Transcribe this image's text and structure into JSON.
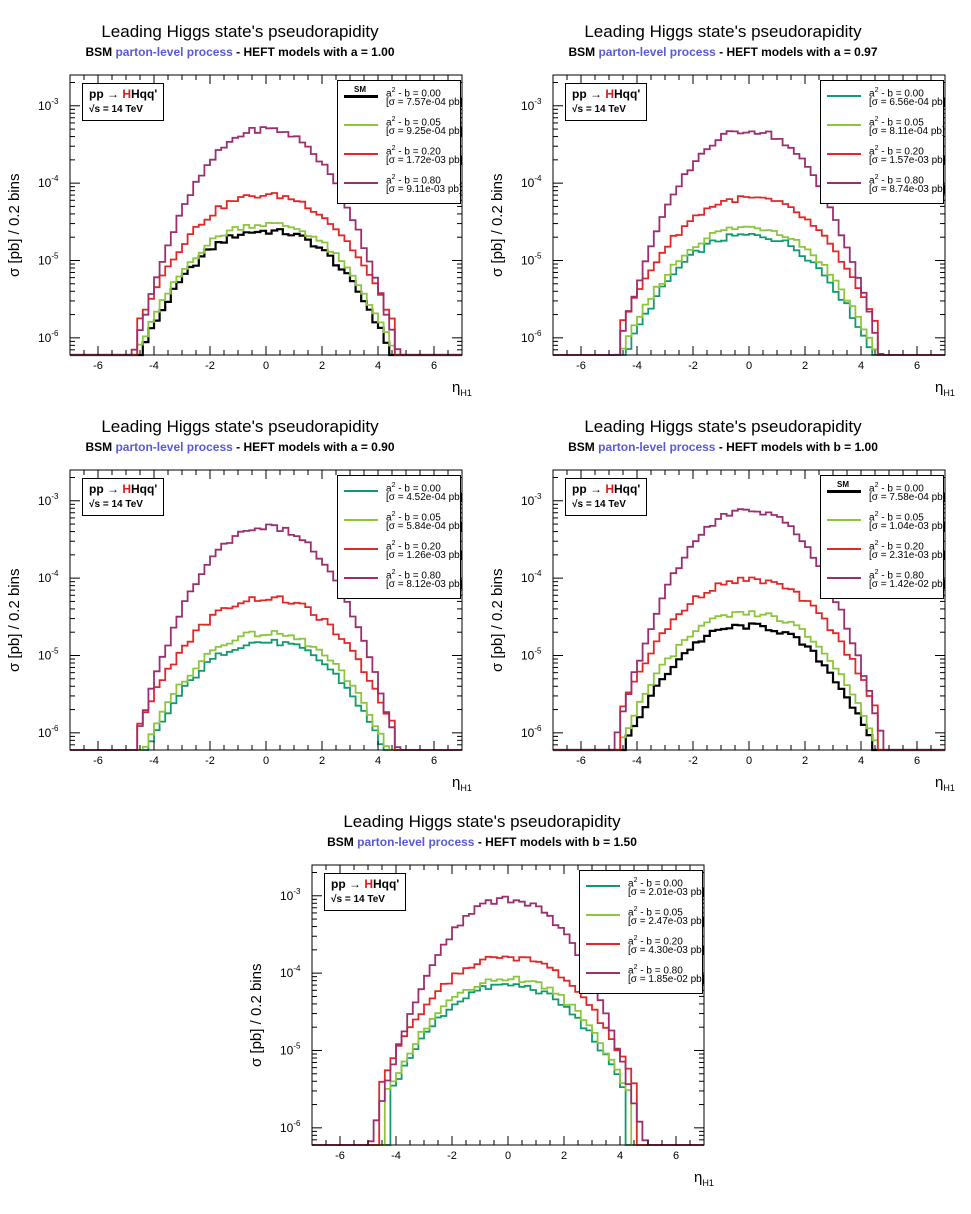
{
  "common": {
    "title": "Leading Higgs state's pseudorapidity",
    "subtitle_prefix": "BSM",
    "subtitle_highlight": "parton-level process",
    "subtitle_mid": "- HEFT models with",
    "ylabel": "σ [pb] / 0.2 bins",
    "xlabel": "η",
    "xlabel_sub": "H",
    "xlabel_subsub": "1",
    "process": "pp",
    "process_arrow": "→",
    "process_H": "H",
    "process_rest": "Hqq'",
    "energy": "√s = 14 TeV",
    "sm_tag": "SM",
    "colors": {
      "sm": "#000000",
      "s000": "#119a6e",
      "s005": "#8cc63e",
      "s020": "#e02828",
      "s080": "#9b2f6e",
      "hl": "#5a5ad6",
      "higgs": "#e01a1a"
    }
  },
  "chart_data": [
    {
      "type": "line",
      "id": "p1",
      "title": "Leading Higgs state's pseudorapidity",
      "subtitle_param": "a = 1.00",
      "xlabel": "η_H1",
      "ylabel": "σ [pb] / 0.2 bins",
      "x_range": [
        -7,
        7
      ],
      "ylim": [
        6e-07,
        0.0025
      ],
      "y_scale": "log",
      "bin_width": 0.2,
      "x_ticks": [
        -6,
        -4,
        -2,
        0,
        2,
        4,
        6
      ],
      "y_ticks": [
        "10-6",
        "10-5",
        "10-4",
        "10-3"
      ],
      "series": [
        {
          "name": "a² - b = 0.00",
          "sm": true,
          "color_key": "sm",
          "sigma_label": "[σ = 7.57e-04 pb]",
          "label_a": "a",
          "label_b": " - b = 0.00",
          "peak": 2.6e-05,
          "dip": 0.08,
          "width": 2.3,
          "tail": 4.4
        },
        {
          "name": "a² - b = 0.05",
          "sm": false,
          "color_key": "s005",
          "sigma_label": "[σ = 9.25e-04 pb]",
          "label_a": "a",
          "label_b": " - b = 0.05",
          "peak": 3.2e-05,
          "dip": 0.08,
          "width": 2.3,
          "tail": 4.5
        },
        {
          "name": "a² - b = 0.20",
          "sm": false,
          "color_key": "s020",
          "sigma_label": "[σ = 1.72e-03 pb]",
          "label_a": "a",
          "label_b": " - b = 0.20",
          "peak": 7.2e-05,
          "dip": 0.03,
          "width": 2.3,
          "tail": 4.6
        },
        {
          "name": "a² - b = 0.80",
          "sm": false,
          "color_key": "s080",
          "sigma_label": "[σ = 9.11e-03 pb]",
          "label_a": "a",
          "label_b": " - b = 0.80",
          "peak": 0.0005,
          "dip": 0.0,
          "width": 1.85,
          "tail": 4.9
        }
      ]
    },
    {
      "type": "line",
      "id": "p2",
      "title": "Leading Higgs state's pseudorapidity",
      "subtitle_param": "a = 0.97",
      "xlabel": "η_H1",
      "ylabel": "σ [pb] / 0.2 bins",
      "x_range": [
        -7,
        7
      ],
      "ylim": [
        6e-07,
        0.0025
      ],
      "y_scale": "log",
      "bin_width": 0.2,
      "x_ticks": [
        -6,
        -4,
        -2,
        0,
        2,
        4,
        6
      ],
      "y_ticks": [
        "10-6",
        "10-5",
        "10-4",
        "10-3"
      ],
      "series": [
        {
          "name": "a² - b = 0.00",
          "sm": false,
          "color_key": "s000",
          "sigma_label": "[σ = 6.56e-04 pb]",
          "label_a": "a",
          "label_b": " - b = 0.00",
          "peak": 2.2e-05,
          "dip": 0.04,
          "width": 2.3,
          "tail": 4.4
        },
        {
          "name": "a² - b = 0.05",
          "sm": false,
          "color_key": "s005",
          "sigma_label": "[σ = 8.11e-04 pb]",
          "label_a": "a",
          "label_b": " - b = 0.05",
          "peak": 2.8e-05,
          "dip": 0.04,
          "width": 2.3,
          "tail": 4.5
        },
        {
          "name": "a² - b = 0.20",
          "sm": false,
          "color_key": "s020",
          "sigma_label": "[σ = 1.57e-03 pb]",
          "label_a": "a",
          "label_b": " - b = 0.20",
          "peak": 6.5e-05,
          "dip": 0.02,
          "width": 2.3,
          "tail": 4.6
        },
        {
          "name": "a² - b = 0.80",
          "sm": false,
          "color_key": "s080",
          "sigma_label": "[σ = 8.74e-03 pb]",
          "label_a": "a",
          "label_b": " - b = 0.80",
          "peak": 0.00048,
          "dip": 0.0,
          "width": 1.85,
          "tail": 4.9
        }
      ]
    },
    {
      "type": "line",
      "id": "p3",
      "title": "Leading Higgs state's pseudorapidity",
      "subtitle_param": "a = 0.90",
      "xlabel": "η_H1",
      "ylabel": "σ [pb] / 0.2 bins",
      "x_range": [
        -7,
        7
      ],
      "ylim": [
        6e-07,
        0.0025
      ],
      "y_scale": "log",
      "bin_width": 0.2,
      "x_ticks": [
        -6,
        -4,
        -2,
        0,
        2,
        4,
        6
      ],
      "y_ticks": [
        "10-6",
        "10-5",
        "10-4",
        "10-3"
      ],
      "series": [
        {
          "name": "a² - b = 0.00",
          "sm": false,
          "color_key": "s000",
          "sigma_label": "[σ = 4.52e-04 pb]",
          "label_a": "a",
          "label_b": " - b = 0.00",
          "peak": 1.55e-05,
          "dip": 0.04,
          "width": 2.3,
          "tail": 4.4
        },
        {
          "name": "a² - b = 0.05",
          "sm": false,
          "color_key": "s005",
          "sigma_label": "[σ = 5.84e-04 pb]",
          "label_a": "a",
          "label_b": " - b = 0.05",
          "peak": 2e-05,
          "dip": 0.04,
          "width": 2.3,
          "tail": 4.5
        },
        {
          "name": "a² - b = 0.20",
          "sm": false,
          "color_key": "s020",
          "sigma_label": "[σ = 1.26e-03 pb]",
          "label_a": "a",
          "label_b": " - b = 0.20",
          "peak": 5.5e-05,
          "dip": 0.0,
          "width": 2.3,
          "tail": 4.6
        },
        {
          "name": "a² - b = 0.80",
          "sm": false,
          "color_key": "s080",
          "sigma_label": "[σ = 8.12e-03 pb]",
          "label_a": "a",
          "label_b": " - b = 0.80",
          "peak": 0.00046,
          "dip": 0.0,
          "width": 1.85,
          "tail": 4.9
        }
      ]
    },
    {
      "type": "line",
      "id": "p4",
      "title": "Leading Higgs state's pseudorapidity",
      "subtitle_param": "b = 1.00",
      "xlabel": "η_H1",
      "ylabel": "σ [pb] / 0.2 bins",
      "x_range": [
        -7,
        7
      ],
      "ylim": [
        6e-07,
        0.0025
      ],
      "y_scale": "log",
      "bin_width": 0.2,
      "x_ticks": [
        -6,
        -4,
        -2,
        0,
        2,
        4,
        6
      ],
      "y_ticks": [
        "10-6",
        "10-5",
        "10-4",
        "10-3"
      ],
      "series": [
        {
          "name": "a² - b = 0.00",
          "sm": true,
          "color_key": "sm",
          "sigma_label": "[σ = 7.58e-04 pb]",
          "label_a": "a",
          "label_b": " - b = 0.00",
          "peak": 2.5e-05,
          "dip": 0.04,
          "width": 2.3,
          "tail": 4.4
        },
        {
          "name": "a² - b = 0.05",
          "sm": false,
          "color_key": "s005",
          "sigma_label": "[σ = 1.04e-03 pb]",
          "label_a": "a",
          "label_b": " - b = 0.05",
          "peak": 3.6e-05,
          "dip": 0.04,
          "width": 2.3,
          "tail": 4.5
        },
        {
          "name": "a² - b = 0.20",
          "sm": false,
          "color_key": "s020",
          "sigma_label": "[σ = 2.31e-03 pb]",
          "label_a": "a",
          "label_b": " - b = 0.20",
          "peak": 9.5e-05,
          "dip": 0.0,
          "width": 2.3,
          "tail": 4.6
        },
        {
          "name": "a² - b = 0.80",
          "sm": false,
          "color_key": "s080",
          "sigma_label": "[σ = 1.42e-02 pb]",
          "label_a": "a",
          "label_b": " - b = 0.80",
          "peak": 0.00075,
          "dip": 0.0,
          "width": 1.85,
          "tail": 5.2
        }
      ]
    },
    {
      "type": "line",
      "id": "p5",
      "title": "Leading Higgs state's pseudorapidity",
      "subtitle_param": "b = 1.50",
      "xlabel": "η_H1",
      "ylabel": "σ [pb] / 0.2 bins",
      "x_range": [
        -7,
        7
      ],
      "ylim": [
        6e-07,
        0.0025
      ],
      "y_scale": "log",
      "bin_width": 0.2,
      "x_ticks": [
        -6,
        -4,
        -2,
        0,
        2,
        4,
        6
      ],
      "y_ticks": [
        "10-6",
        "10-5",
        "10-4",
        "10-3"
      ],
      "series": [
        {
          "name": "a² - b = 0.00",
          "sm": false,
          "color_key": "s000",
          "sigma_label": "[σ = 2.01e-03 pb]",
          "label_a": "a",
          "label_b": " - b = 0.00",
          "peak": 7e-05,
          "dip": 0.0,
          "width": 2.3,
          "tail": 4.3
        },
        {
          "name": "a² - b = 0.05",
          "sm": false,
          "color_key": "s005",
          "sigma_label": "[σ = 2.47e-03 pb]",
          "label_a": "a",
          "label_b": " - b = 0.05",
          "peak": 8.5e-05,
          "dip": 0.0,
          "width": 2.3,
          "tail": 4.4
        },
        {
          "name": "a² - b = 0.20",
          "sm": false,
          "color_key": "s020",
          "sigma_label": "[σ = 4.30e-03 pb]",
          "label_a": "a",
          "label_b": " - b = 0.20",
          "peak": 0.00016,
          "dip": 0.0,
          "width": 2.3,
          "tail": 4.6
        },
        {
          "name": "a² - b = 0.80",
          "sm": false,
          "color_key": "s080",
          "sigma_label": "[σ = 1.85e-02 pb]",
          "label_a": "a",
          "label_b": " - b = 0.80",
          "peak": 0.0009,
          "dip": 0.0,
          "width": 1.85,
          "tail": 4.9
        }
      ]
    }
  ]
}
